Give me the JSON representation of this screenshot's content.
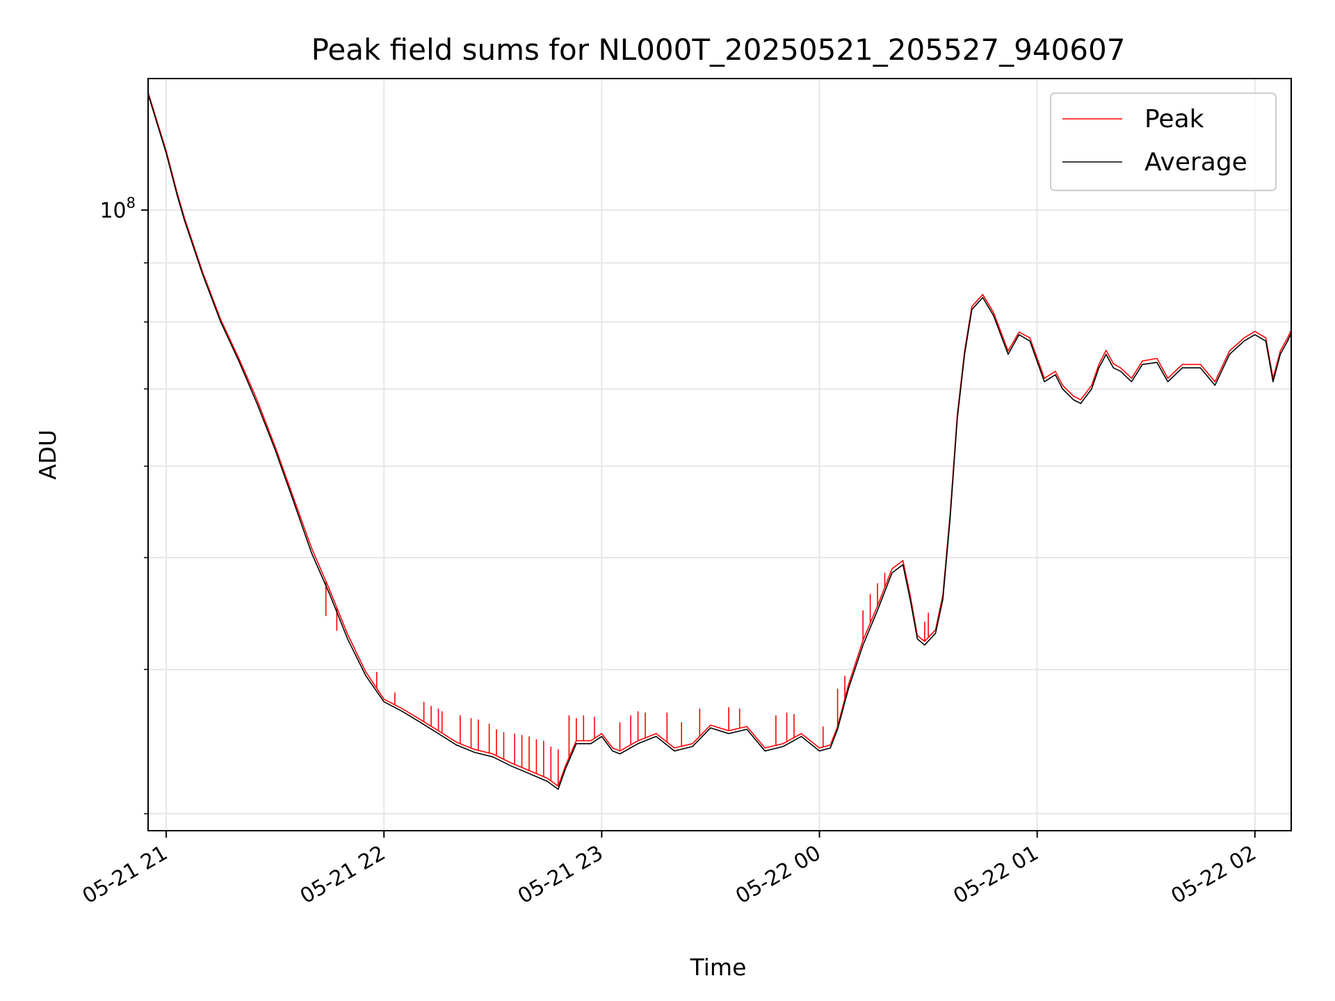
{
  "chart_data": {
    "type": "line",
    "title": "Peak field sums for NL000T_20250521_205527_940607",
    "xlabel": "Time",
    "ylabel": "ADU",
    "y_scale": "log",
    "xlim": [
      "2025-05-21 20:55",
      "2025-05-22 02:10"
    ],
    "ylim": [
      29000000,
      130000000
    ],
    "x_ticks": [
      "05-21 21",
      "05-21 22",
      "05-21 23",
      "05-22 00",
      "05-22 01",
      "05-22 02"
    ],
    "y_major_tick_labels": [
      {
        "base": "10",
        "exp": "8",
        "value": 100000000
      }
    ],
    "y_minor_ticks": [
      30000000,
      40000000,
      50000000,
      60000000,
      70000000,
      80000000,
      90000000
    ],
    "grid": true,
    "legend": {
      "position": "top-right",
      "entries": [
        "Peak",
        "Average"
      ]
    },
    "colors": {
      "Peak": "#ff0000",
      "Average": "#000000"
    },
    "series": [
      {
        "name": "Average",
        "points": [
          [
            "2025-05-21 20:55",
            126000000
          ],
          [
            "2025-05-21 21:00",
            112000000
          ],
          [
            "2025-05-21 21:03",
            103000000
          ],
          [
            "2025-05-21 21:05",
            98000000
          ],
          [
            "2025-05-21 21:10",
            88000000
          ],
          [
            "2025-05-21 21:15",
            80000000
          ],
          [
            "2025-05-21 21:20",
            74000000
          ],
          [
            "2025-05-21 21:25",
            68000000
          ],
          [
            "2025-05-21 21:30",
            62000000
          ],
          [
            "2025-05-21 21:35",
            56000000
          ],
          [
            "2025-05-21 21:40",
            50500000
          ],
          [
            "2025-05-21 21:45",
            46500000
          ],
          [
            "2025-05-21 21:50",
            42500000
          ],
          [
            "2025-05-21 21:55",
            39500000
          ],
          [
            "2025-05-21 22:00",
            37500000
          ],
          [
            "2025-05-21 22:05",
            36800000
          ],
          [
            "2025-05-21 22:10",
            36000000
          ],
          [
            "2025-05-21 22:15",
            35200000
          ],
          [
            "2025-05-21 22:20",
            34400000
          ],
          [
            "2025-05-21 22:25",
            33900000
          ],
          [
            "2025-05-21 22:30",
            33600000
          ],
          [
            "2025-05-21 22:35",
            33000000
          ],
          [
            "2025-05-21 22:40",
            32500000
          ],
          [
            "2025-05-21 22:45",
            32000000
          ],
          [
            "2025-05-21 22:48",
            31500000
          ],
          [
            "2025-05-21 22:50",
            32800000
          ],
          [
            "2025-05-21 22:53",
            34500000
          ],
          [
            "2025-05-21 22:57",
            34500000
          ],
          [
            "2025-05-21 23:00",
            35000000
          ],
          [
            "2025-05-21 23:03",
            34000000
          ],
          [
            "2025-05-21 23:05",
            33800000
          ],
          [
            "2025-05-21 23:10",
            34500000
          ],
          [
            "2025-05-21 23:15",
            35000000
          ],
          [
            "2025-05-21 23:20",
            34000000
          ],
          [
            "2025-05-21 23:25",
            34300000
          ],
          [
            "2025-05-21 23:30",
            35600000
          ],
          [
            "2025-05-21 23:35",
            35200000
          ],
          [
            "2025-05-21 23:40",
            35500000
          ],
          [
            "2025-05-21 23:45",
            34000000
          ],
          [
            "2025-05-21 23:50",
            34300000
          ],
          [
            "2025-05-21 23:55",
            35000000
          ],
          [
            "2025-05-22 00:00",
            34000000
          ],
          [
            "2025-05-22 00:03",
            34200000
          ],
          [
            "2025-05-22 00:05",
            35500000
          ],
          [
            "2025-05-22 00:08",
            38500000
          ],
          [
            "2025-05-22 00:12",
            42000000
          ],
          [
            "2025-05-22 00:16",
            45000000
          ],
          [
            "2025-05-22 00:20",
            48500000
          ],
          [
            "2025-05-22 00:23",
            49300000
          ],
          [
            "2025-05-22 00:25",
            46000000
          ],
          [
            "2025-05-22 00:27",
            42500000
          ],
          [
            "2025-05-22 00:29",
            42000000
          ],
          [
            "2025-05-22 00:32",
            43000000
          ],
          [
            "2025-05-22 00:34",
            46000000
          ],
          [
            "2025-05-22 00:36",
            54000000
          ],
          [
            "2025-05-22 00:38",
            66000000
          ],
          [
            "2025-05-22 00:40",
            75000000
          ],
          [
            "2025-05-22 00:42",
            82000000
          ],
          [
            "2025-05-22 00:45",
            84000000
          ],
          [
            "2025-05-22 00:48",
            81000000
          ],
          [
            "2025-05-22 00:52",
            75000000
          ],
          [
            "2025-05-22 00:55",
            78000000
          ],
          [
            "2025-05-22 00:58",
            77000000
          ],
          [
            "2025-05-22 01:02",
            71000000
          ],
          [
            "2025-05-22 01:05",
            72000000
          ],
          [
            "2025-05-22 01:07",
            70000000
          ],
          [
            "2025-05-22 01:10",
            68500000
          ],
          [
            "2025-05-22 01:12",
            68000000
          ],
          [
            "2025-05-22 01:15",
            70000000
          ],
          [
            "2025-05-22 01:17",
            73000000
          ],
          [
            "2025-05-22 01:19",
            75000000
          ],
          [
            "2025-05-22 01:21",
            73000000
          ],
          [
            "2025-05-22 01:23",
            72500000
          ],
          [
            "2025-05-22 01:26",
            71000000
          ],
          [
            "2025-05-22 01:29",
            73500000
          ],
          [
            "2025-05-22 01:33",
            73800000
          ],
          [
            "2025-05-22 01:36",
            71000000
          ],
          [
            "2025-05-22 01:40",
            73000000
          ],
          [
            "2025-05-22 01:45",
            73000000
          ],
          [
            "2025-05-22 01:49",
            70500000
          ],
          [
            "2025-05-22 01:53",
            75000000
          ],
          [
            "2025-05-22 01:57",
            77000000
          ],
          [
            "2025-05-22 02:00",
            78000000
          ],
          [
            "2025-05-22 02:03",
            77000000
          ],
          [
            "2025-05-22 02:05",
            71000000
          ],
          [
            "2025-05-22 02:07",
            75000000
          ],
          [
            "2025-05-22 02:09",
            77000000
          ],
          [
            "2025-05-22 02:10",
            78200000
          ]
        ]
      },
      {
        "name": "Peak",
        "points": [
          [
            "2025-05-21 20:55",
            126500000
          ],
          [
            "2025-05-21 21:00",
            112500000
          ],
          [
            "2025-05-21 21:03",
            103500000
          ],
          [
            "2025-05-21 21:05",
            98500000
          ],
          [
            "2025-05-21 21:10",
            88400000
          ],
          [
            "2025-05-21 21:15",
            80400000
          ],
          [
            "2025-05-21 21:20",
            74400000
          ],
          [
            "2025-05-21 21:25",
            68500000
          ],
          [
            "2025-05-21 21:30",
            62400000
          ],
          [
            "2025-05-21 21:35",
            56400000
          ],
          [
            "2025-05-21 21:40",
            51000000
          ],
          [
            "2025-05-21 21:45",
            46900000
          ],
          [
            "2025-05-21 21:50",
            42900000
          ],
          [
            "2025-05-21 21:55",
            39800000
          ],
          [
            "2025-05-21 22:00",
            37700000
          ],
          [
            "2025-05-21 22:05",
            37000000
          ],
          [
            "2025-05-21 22:10",
            36200000
          ],
          [
            "2025-05-21 22:15",
            35400000
          ],
          [
            "2025-05-21 22:20",
            34600000
          ],
          [
            "2025-05-21 22:25",
            34100000
          ],
          [
            "2025-05-21 22:30",
            33800000
          ],
          [
            "2025-05-21 22:35",
            33200000
          ],
          [
            "2025-05-21 22:40",
            32700000
          ],
          [
            "2025-05-21 22:45",
            32200000
          ],
          [
            "2025-05-21 22:48",
            31700000
          ],
          [
            "2025-05-21 22:50",
            33000000
          ],
          [
            "2025-05-21 22:53",
            34700000
          ],
          [
            "2025-05-21 22:57",
            34700000
          ],
          [
            "2025-05-21 23:00",
            35200000
          ],
          [
            "2025-05-21 23:03",
            34200000
          ],
          [
            "2025-05-21 23:05",
            34000000
          ],
          [
            "2025-05-21 23:10",
            34700000
          ],
          [
            "2025-05-21 23:15",
            35200000
          ],
          [
            "2025-05-21 23:20",
            34200000
          ],
          [
            "2025-05-21 23:25",
            34500000
          ],
          [
            "2025-05-21 23:30",
            35800000
          ],
          [
            "2025-05-21 23:35",
            35400000
          ],
          [
            "2025-05-21 23:40",
            35700000
          ],
          [
            "2025-05-21 23:45",
            34200000
          ],
          [
            "2025-05-21 23:50",
            34500000
          ],
          [
            "2025-05-21 23:55",
            35200000
          ],
          [
            "2025-05-22 00:00",
            34200000
          ],
          [
            "2025-05-22 00:03",
            34400000
          ],
          [
            "2025-05-22 00:05",
            35700000
          ],
          [
            "2025-05-22 00:08",
            38800000
          ],
          [
            "2025-05-22 00:12",
            42400000
          ],
          [
            "2025-05-22 00:16",
            45400000
          ],
          [
            "2025-05-22 00:20",
            48900000
          ],
          [
            "2025-05-22 00:23",
            49700000
          ],
          [
            "2025-05-22 00:25",
            46400000
          ],
          [
            "2025-05-22 00:27",
            42800000
          ],
          [
            "2025-05-22 00:29",
            42300000
          ],
          [
            "2025-05-22 00:32",
            43300000
          ],
          [
            "2025-05-22 00:34",
            46400000
          ],
          [
            "2025-05-22 00:36",
            54500000
          ],
          [
            "2025-05-22 00:38",
            66500000
          ],
          [
            "2025-05-22 00:40",
            75500000
          ],
          [
            "2025-05-22 00:42",
            82500000
          ],
          [
            "2025-05-22 00:45",
            84500000
          ],
          [
            "2025-05-22 00:48",
            81500000
          ],
          [
            "2025-05-22 00:52",
            75500000
          ],
          [
            "2025-05-22 00:55",
            78400000
          ],
          [
            "2025-05-22 00:58",
            77500000
          ],
          [
            "2025-05-22 01:02",
            71500000
          ],
          [
            "2025-05-22 01:05",
            72500000
          ],
          [
            "2025-05-22 01:07",
            70500000
          ],
          [
            "2025-05-22 01:10",
            69000000
          ],
          [
            "2025-05-22 01:12",
            68500000
          ],
          [
            "2025-05-22 01:15",
            70500000
          ],
          [
            "2025-05-22 01:17",
            73500000
          ],
          [
            "2025-05-22 01:19",
            75600000
          ],
          [
            "2025-05-22 01:21",
            73600000
          ],
          [
            "2025-05-22 01:23",
            73000000
          ],
          [
            "2025-05-22 01:26",
            71500000
          ],
          [
            "2025-05-22 01:29",
            74000000
          ],
          [
            "2025-05-22 01:33",
            74400000
          ],
          [
            "2025-05-22 01:36",
            71500000
          ],
          [
            "2025-05-22 01:40",
            73500000
          ],
          [
            "2025-05-22 01:45",
            73500000
          ],
          [
            "2025-05-22 01:49",
            71000000
          ],
          [
            "2025-05-22 01:53",
            75500000
          ],
          [
            "2025-05-22 01:57",
            77500000
          ],
          [
            "2025-05-22 02:00",
            78500000
          ],
          [
            "2025-05-22 02:03",
            77500000
          ],
          [
            "2025-05-22 02:05",
            71500000
          ],
          [
            "2025-05-22 02:07",
            75500000
          ],
          [
            "2025-05-22 02:09",
            77500000
          ],
          [
            "2025-05-22 02:10",
            78700000
          ]
        ],
        "spikes": [
          [
            "2025-05-21 21:44",
            44500000
          ],
          [
            "2025-05-21 21:47",
            43200000
          ],
          [
            "2025-05-21 21:58",
            39800000
          ],
          [
            "2025-05-21 22:03",
            38200000
          ],
          [
            "2025-05-21 22:11",
            37500000
          ],
          [
            "2025-05-21 22:13",
            37200000
          ],
          [
            "2025-05-21 22:15",
            37000000
          ],
          [
            "2025-05-21 22:16",
            36800000
          ],
          [
            "2025-05-21 22:21",
            36500000
          ],
          [
            "2025-05-21 22:24",
            36300000
          ],
          [
            "2025-05-21 22:26",
            36200000
          ],
          [
            "2025-05-21 22:29",
            35900000
          ],
          [
            "2025-05-21 22:31",
            35500000
          ],
          [
            "2025-05-21 22:33",
            35300000
          ],
          [
            "2025-05-21 22:36",
            35200000
          ],
          [
            "2025-05-21 22:38",
            35100000
          ],
          [
            "2025-05-21 22:40",
            35000000
          ],
          [
            "2025-05-21 22:42",
            34800000
          ],
          [
            "2025-05-21 22:44",
            34700000
          ],
          [
            "2025-05-21 22:46",
            34300000
          ],
          [
            "2025-05-21 22:48",
            34100000
          ],
          [
            "2025-05-21 22:51",
            36500000
          ],
          [
            "2025-05-21 22:53",
            36300000
          ],
          [
            "2025-05-21 22:55",
            36500000
          ],
          [
            "2025-05-21 22:58",
            36400000
          ],
          [
            "2025-05-21 23:05",
            36000000
          ],
          [
            "2025-05-21 23:08",
            36500000
          ],
          [
            "2025-05-21 23:10",
            36800000
          ],
          [
            "2025-05-21 23:12",
            36700000
          ],
          [
            "2025-05-21 23:18",
            36700000
          ],
          [
            "2025-05-21 23:22",
            36000000
          ],
          [
            "2025-05-21 23:27",
            37000000
          ],
          [
            "2025-05-21 23:35",
            37100000
          ],
          [
            "2025-05-21 23:38",
            37000000
          ],
          [
            "2025-05-21 23:48",
            36500000
          ],
          [
            "2025-05-21 23:51",
            36700000
          ],
          [
            "2025-05-21 23:53",
            36600000
          ],
          [
            "2025-05-22 00:01",
            35700000
          ],
          [
            "2025-05-22 00:05",
            38500000
          ],
          [
            "2025-05-22 00:07",
            39500000
          ],
          [
            "2025-05-22 00:12",
            45000000
          ],
          [
            "2025-05-22 00:14",
            46500000
          ],
          [
            "2025-05-22 00:16",
            47500000
          ],
          [
            "2025-05-22 00:18",
            48500000
          ],
          [
            "2025-05-22 00:29",
            44000000
          ],
          [
            "2025-05-22 00:30",
            44800000
          ]
        ]
      }
    ]
  }
}
